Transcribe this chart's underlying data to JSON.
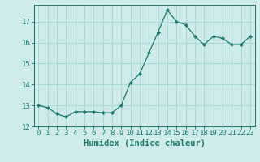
{
  "x": [
    0,
    1,
    2,
    3,
    4,
    5,
    6,
    7,
    8,
    9,
    10,
    11,
    12,
    13,
    14,
    15,
    16,
    17,
    18,
    19,
    20,
    21,
    22,
    23
  ],
  "y": [
    13.0,
    12.9,
    12.6,
    12.45,
    12.7,
    12.7,
    12.7,
    12.65,
    12.65,
    13.0,
    14.1,
    14.5,
    15.5,
    16.5,
    17.55,
    17.0,
    16.85,
    16.3,
    15.9,
    16.3,
    16.2,
    15.9,
    15.9,
    16.3
  ],
  "line_color": "#1a7a6e",
  "marker": "D",
  "marker_size": 2.2,
  "bg_color": "#ceeaea",
  "grid_color": "#a8d8d8",
  "tick_color": "#1a7a6e",
  "xlabel": "Humidex (Indice chaleur)",
  "xlim": [
    -0.5,
    23.5
  ],
  "ylim": [
    12,
    17.8
  ],
  "yticks": [
    12,
    13,
    14,
    15,
    16,
    17
  ],
  "xticks": [
    0,
    1,
    2,
    3,
    4,
    5,
    6,
    7,
    8,
    9,
    10,
    11,
    12,
    13,
    14,
    15,
    16,
    17,
    18,
    19,
    20,
    21,
    22,
    23
  ],
  "xtick_labels": [
    "0",
    "1",
    "2",
    "3",
    "4",
    "5",
    "6",
    "7",
    "8",
    "9",
    "10",
    "11",
    "12",
    "13",
    "14",
    "15",
    "16",
    "17",
    "18",
    "19",
    "20",
    "21",
    "22",
    "23"
  ],
  "font_family": "monospace",
  "xlabel_fontsize": 7.5,
  "tick_fontsize": 6.5
}
